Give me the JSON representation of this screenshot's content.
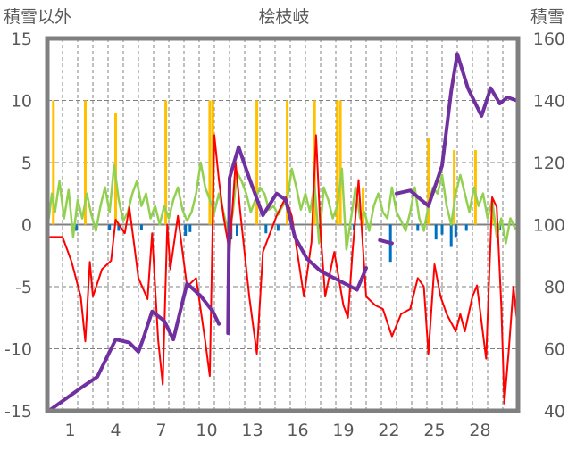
{
  "chart_data": {
    "type": "line",
    "title": "桧枝岐",
    "ylabel_left": "積雪以外",
    "ylabel_right": "積雪",
    "ylim_left": [
      -15,
      15
    ],
    "ylim_right": [
      40,
      160
    ],
    "yticks_left": [
      "15",
      "10",
      "5",
      "0",
      "-5",
      "-10",
      "-15"
    ],
    "yticks_right": [
      "160",
      "140",
      "120",
      "100",
      "80",
      "60",
      "40"
    ],
    "xlim": [
      -0.5,
      30.5
    ],
    "xticks": [
      "1",
      "4",
      "7",
      "10",
      "13",
      "16",
      "19",
      "22",
      "25",
      "28"
    ],
    "grid": true,
    "colors": {
      "temperature": "#FF0000",
      "green": "#92D050",
      "sunshine": "#FFC000",
      "precip": "#0070C0",
      "snow": "#7030A0",
      "frame": "#808080"
    },
    "series": [
      {
        "name": "green",
        "axis": "left",
        "values": [
          [
            -0.4,
            0.5
          ],
          [
            -0.2,
            2.5
          ],
          [
            0,
            1
          ],
          [
            0.3,
            3.5
          ],
          [
            0.6,
            0.5
          ],
          [
            0.9,
            2.8
          ],
          [
            1.2,
            -1
          ],
          [
            1.5,
            2
          ],
          [
            1.8,
            0.5
          ],
          [
            2.1,
            2.5
          ],
          [
            2.4,
            0.8
          ],
          [
            2.7,
            -0.5
          ],
          [
            3,
            1.5
          ],
          [
            3.3,
            3
          ],
          [
            3.6,
            1
          ],
          [
            3.9,
            4.8
          ],
          [
            4.2,
            2
          ],
          [
            4.5,
            0.3
          ],
          [
            4.8,
            1
          ],
          [
            5.1,
            2.5
          ],
          [
            5.4,
            3.5
          ],
          [
            5.7,
            1.5
          ],
          [
            6,
            2.5
          ],
          [
            6.3,
            0.5
          ],
          [
            6.6,
            1.5
          ],
          [
            6.9,
            0
          ],
          [
            7.2,
            1.5
          ],
          [
            7.5,
            0.5
          ],
          [
            7.8,
            2
          ],
          [
            8.1,
            3
          ],
          [
            8.4,
            1.2
          ],
          [
            8.7,
            0.3
          ],
          [
            9,
            1
          ],
          [
            9.3,
            2.5
          ],
          [
            9.6,
            5
          ],
          [
            9.9,
            3
          ],
          [
            10.2,
            2
          ],
          [
            10.5,
            1
          ],
          [
            10.8,
            2.5
          ],
          [
            11.1,
            1
          ],
          [
            11.4,
            -0.5
          ],
          [
            11.7,
            0.8
          ],
          [
            12,
            4.2
          ],
          [
            12.3,
            3.5
          ],
          [
            12.6,
            2.5
          ],
          [
            12.9,
            1
          ],
          [
            13.2,
            2
          ],
          [
            13.5,
            3
          ],
          [
            13.8,
            2.5
          ],
          [
            14.1,
            1.2
          ],
          [
            14.4,
            1.5
          ],
          [
            14.7,
            0.8
          ],
          [
            15,
            1.5
          ],
          [
            15.3,
            2
          ],
          [
            15.6,
            4.5
          ],
          [
            15.9,
            3
          ],
          [
            16.2,
            1.2
          ],
          [
            16.5,
            2.5
          ],
          [
            16.8,
            1
          ],
          [
            17.1,
            3.2
          ],
          [
            17.4,
            -1.5
          ],
          [
            17.7,
            3
          ],
          [
            18,
            2
          ],
          [
            18.3,
            0.5
          ],
          [
            18.6,
            1.5
          ],
          [
            18.9,
            4.5
          ],
          [
            19.2,
            -2
          ],
          [
            19.5,
            0.5
          ],
          [
            19.8,
            3
          ],
          [
            20.1,
            0.5
          ],
          [
            20.4,
            1
          ],
          [
            20.7,
            -0.5
          ],
          [
            21,
            1.5
          ],
          [
            21.3,
            2.5
          ],
          [
            21.6,
            1
          ],
          [
            21.9,
            0.5
          ],
          [
            22.2,
            3
          ],
          [
            22.5,
            1
          ],
          [
            22.8,
            0.3
          ],
          [
            23.1,
            -0.5
          ],
          [
            23.4,
            1
          ],
          [
            23.7,
            3
          ],
          [
            24,
            0.5
          ],
          [
            24.3,
            -0.5
          ],
          [
            24.6,
            1.5
          ],
          [
            24.9,
            3
          ],
          [
            25.2,
            2.5
          ],
          [
            25.5,
            4
          ],
          [
            25.8,
            1.5
          ],
          [
            26.1,
            0
          ],
          [
            26.4,
            2.5
          ],
          [
            26.7,
            4
          ],
          [
            27,
            2.5
          ],
          [
            27.3,
            1
          ],
          [
            27.6,
            3
          ],
          [
            27.9,
            1.5
          ],
          [
            28.2,
            2.5
          ],
          [
            28.5,
            0.5
          ],
          [
            28.8,
            2
          ],
          [
            29.1,
            -1
          ],
          [
            29.4,
            0.5
          ],
          [
            29.7,
            -1.5
          ],
          [
            30,
            0.5
          ],
          [
            30.3,
            -0.3
          ]
        ]
      },
      {
        "name": "temperature",
        "axis": "left",
        "values": [
          [
            -0.4,
            -1
          ],
          [
            0.5,
            -1
          ],
          [
            1.1,
            -3
          ],
          [
            1.7,
            -5.8
          ],
          [
            2,
            -9.4
          ],
          [
            2.3,
            -3
          ],
          [
            2.5,
            -5.8
          ],
          [
            3.1,
            -3.6
          ],
          [
            3.7,
            -2.9
          ],
          [
            4,
            0.4
          ],
          [
            4.6,
            -0.7
          ],
          [
            4.9,
            1.4
          ],
          [
            5.5,
            -4.3
          ],
          [
            6.1,
            -6
          ],
          [
            6.4,
            -0.7
          ],
          [
            6.8,
            -9.3
          ],
          [
            7.1,
            -12.9
          ],
          [
            7.4,
            0
          ],
          [
            7.6,
            -3.6
          ],
          [
            8.1,
            0.7
          ],
          [
            8.7,
            -5
          ],
          [
            9.3,
            -4.3
          ],
          [
            9.9,
            -9.4
          ],
          [
            10.2,
            -12.2
          ],
          [
            10.5,
            7.2
          ],
          [
            10.8,
            3.6
          ],
          [
            11.1,
            0.7
          ],
          [
            11.5,
            -2.2
          ],
          [
            11.9,
            5
          ],
          [
            12.2,
            1.1
          ],
          [
            12.8,
            -5.8
          ],
          [
            13.3,
            -10.4
          ],
          [
            13.7,
            -2.2
          ],
          [
            14.6,
            0.7
          ],
          [
            15.2,
            2.2
          ],
          [
            15.6,
            0.7
          ],
          [
            16.4,
            -5.8
          ],
          [
            16.9,
            -1.4
          ],
          [
            17.2,
            7.2
          ],
          [
            17.5,
            -0.7
          ],
          [
            17.8,
            -5.8
          ],
          [
            18.4,
            -2.2
          ],
          [
            19,
            -6.5
          ],
          [
            19.3,
            -7.5
          ],
          [
            19.6,
            -2.2
          ],
          [
            20,
            3.6
          ],
          [
            20.5,
            -5.8
          ],
          [
            21.1,
            -6.5
          ],
          [
            21.6,
            -6.8
          ],
          [
            22.2,
            -9
          ],
          [
            22.8,
            -7.2
          ],
          [
            23.4,
            -6.8
          ],
          [
            23.9,
            -4.3
          ],
          [
            24.3,
            -5
          ],
          [
            24.6,
            -10.4
          ],
          [
            25,
            -3.2
          ],
          [
            25.4,
            -5.8
          ],
          [
            25.8,
            -7.2
          ],
          [
            26.4,
            -8.6
          ],
          [
            26.7,
            -7.2
          ],
          [
            27,
            -8.6
          ],
          [
            27.5,
            -5.8
          ],
          [
            27.8,
            -4.9
          ],
          [
            28.4,
            -10.8
          ],
          [
            28.8,
            2.2
          ],
          [
            29.1,
            1.4
          ],
          [
            29.4,
            -6.5
          ],
          [
            29.6,
            -14.4
          ],
          [
            29.9,
            -10
          ],
          [
            30.2,
            -5
          ],
          [
            30.5,
            -8.6
          ]
        ]
      },
      {
        "name": "snow",
        "axis": "right",
        "values": [
          [
            -0.4,
            40
          ],
          [
            1.6,
            47
          ],
          [
            2.8,
            51
          ],
          [
            3.4,
            57
          ],
          [
            4,
            63
          ],
          [
            4.9,
            62
          ],
          [
            5.5,
            59
          ],
          [
            5.8,
            63
          ],
          [
            6.4,
            72
          ],
          [
            7.2,
            69
          ],
          [
            7.8,
            63
          ],
          [
            8.7,
            81
          ],
          [
            9.6,
            77
          ],
          [
            10.4,
            72
          ],
          [
            10.8,
            68
          ],
          [
            null,
            null
          ],
          [
            11.4,
            65
          ],
          [
            11.5,
            115
          ],
          [
            12.1,
            125
          ],
          [
            12.8,
            115
          ],
          [
            13.7,
            103
          ],
          [
            14.6,
            110
          ],
          [
            15.2,
            108
          ],
          [
            15.8,
            96
          ],
          [
            16.6,
            89
          ],
          [
            17.5,
            85
          ],
          [
            18.7,
            82
          ],
          [
            19.9,
            79
          ],
          [
            20.5,
            86
          ],
          [
            null,
            null
          ],
          [
            21.4,
            95
          ],
          [
            22.2,
            94
          ],
          [
            null,
            null
          ],
          [
            22.5,
            110
          ],
          [
            23.4,
            111
          ],
          [
            24.6,
            106
          ],
          [
            25.5,
            119
          ],
          [
            26.1,
            143
          ],
          [
            26.5,
            155
          ],
          [
            27.2,
            144
          ],
          [
            28.1,
            135
          ],
          [
            28.7,
            144
          ],
          [
            29.3,
            139
          ],
          [
            29.8,
            141
          ],
          [
            30.4,
            140
          ]
        ]
      }
    ],
    "bars": [
      {
        "name": "sunshine",
        "axis": "left",
        "values": [
          [
            -0.1,
            10
          ],
          [
            2,
            10
          ],
          [
            4,
            9
          ],
          [
            7.3,
            10
          ],
          [
            10.2,
            10
          ],
          [
            10.4,
            10
          ],
          [
            13.3,
            10
          ],
          [
            15.3,
            10
          ],
          [
            17.1,
            10
          ],
          [
            18.6,
            10
          ],
          [
            18.8,
            10
          ],
          [
            20.3,
            3
          ],
          [
            24.6,
            7
          ],
          [
            26.3,
            6
          ],
          [
            27.7,
            6
          ],
          [
            28.8,
            2
          ]
        ]
      },
      {
        "name": "precip",
        "axis": "left",
        "values": [
          [
            1.4,
            -0.5
          ],
          [
            3.6,
            -0.4
          ],
          [
            4.2,
            -0.5
          ],
          [
            5.7,
            -0.4
          ],
          [
            8.6,
            -0.9
          ],
          [
            8.9,
            -0.6
          ],
          [
            11.6,
            -1.2
          ],
          [
            12,
            -0.9
          ],
          [
            13.9,
            -0.7
          ],
          [
            14.7,
            -0.5
          ],
          [
            17.4,
            -0.5
          ],
          [
            19.7,
            -0.4
          ],
          [
            22.1,
            -3
          ],
          [
            23.9,
            -0.5
          ],
          [
            25.1,
            -1.2
          ],
          [
            25.5,
            -0.8
          ],
          [
            26.1,
            -1.8
          ],
          [
            26.4,
            -1
          ],
          [
            27.1,
            -0.5
          ],
          [
            29.3,
            -0.4
          ]
        ]
      }
    ]
  }
}
